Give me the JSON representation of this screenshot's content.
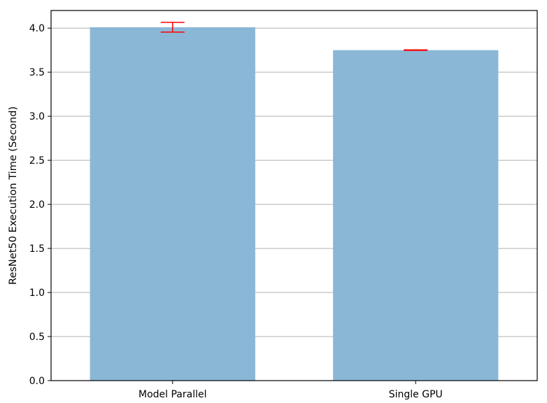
{
  "chart_data": {
    "type": "bar",
    "categories": [
      "Model Parallel",
      "Single GPU"
    ],
    "values": [
      4.01,
      3.75
    ],
    "errors": [
      0.055,
      0.003
    ],
    "title": "",
    "xlabel": "",
    "ylabel": "ResNet50 Execution Time (Second)",
    "ylim": [
      0,
      4.2
    ],
    "yticks": [
      "0.0",
      "0.5",
      "1.0",
      "1.5",
      "2.0",
      "2.5",
      "3.0",
      "3.5",
      "4.0"
    ],
    "grid": "horizontal",
    "bar_color": "#8bb7d7",
    "error_color": "#ff0000"
  }
}
